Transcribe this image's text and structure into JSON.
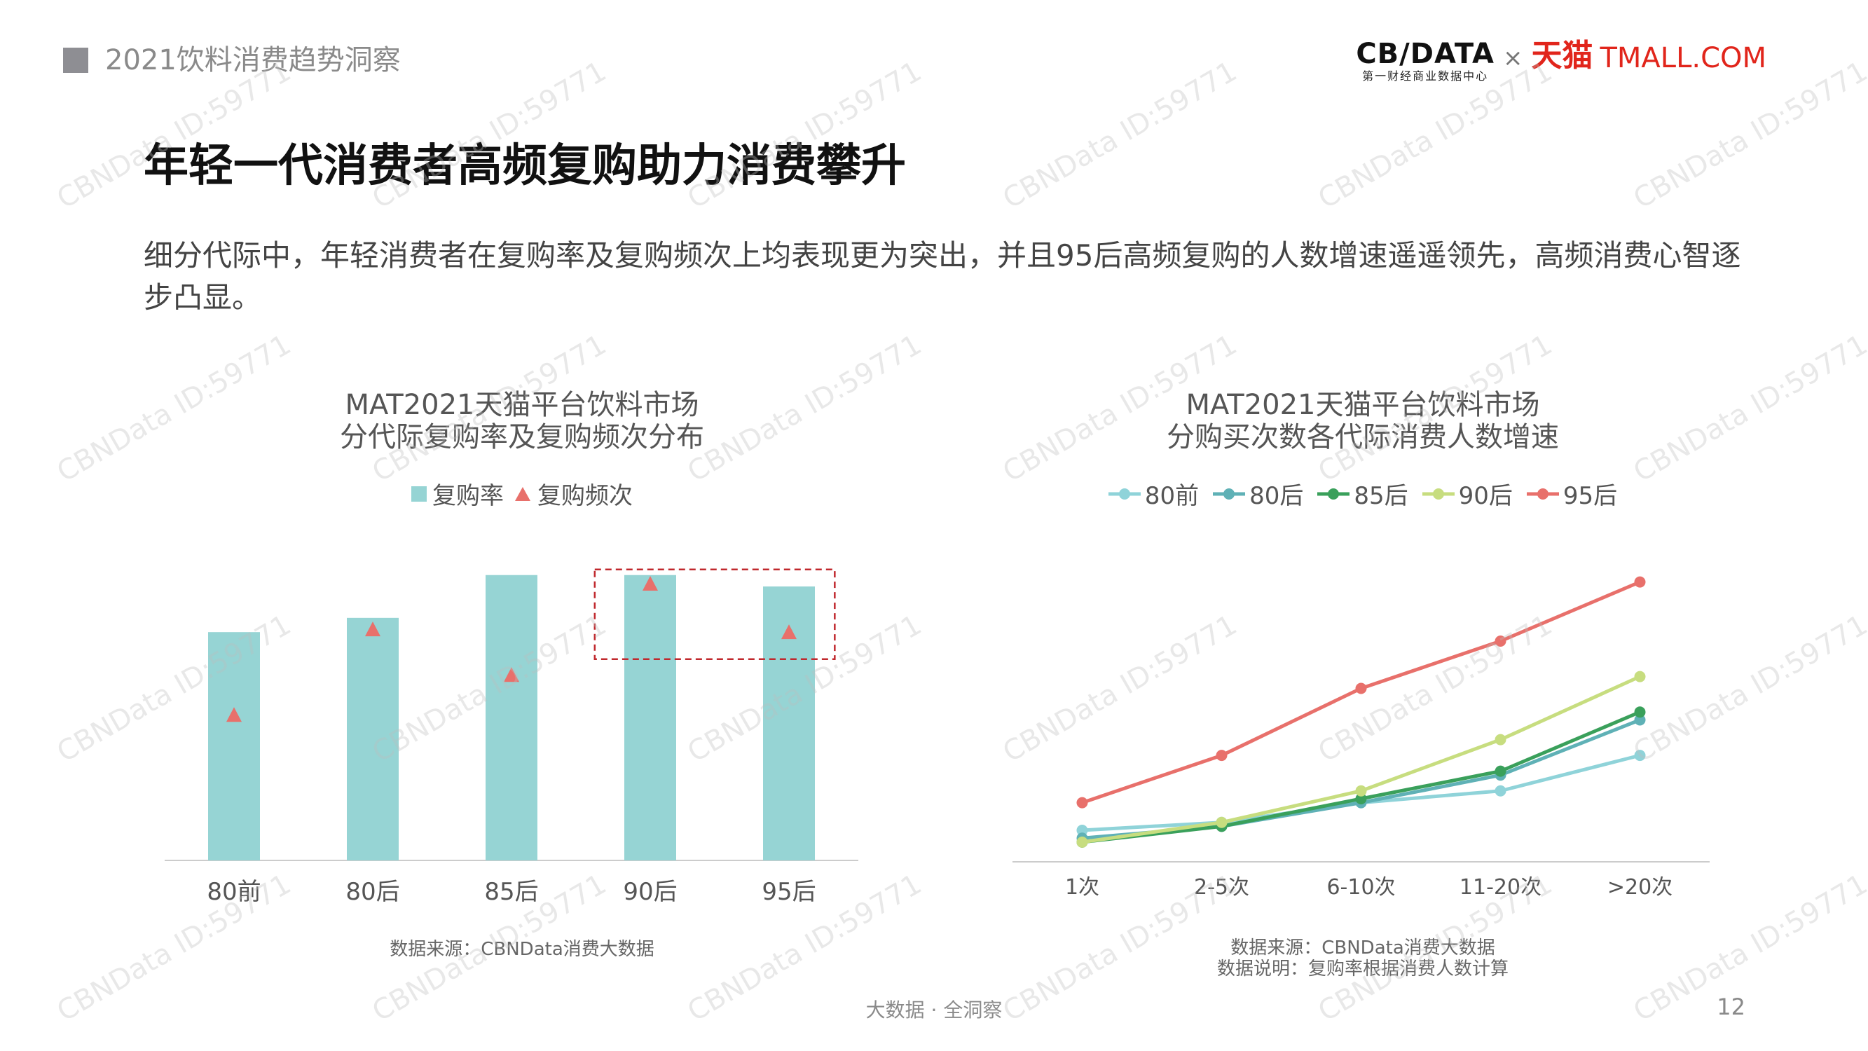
{
  "header": {
    "title": "2021饮料消费趋势洞察"
  },
  "logo": {
    "cbndata": "CB∕DATA",
    "cbndata_sub": "第一财经商业数据中心",
    "times": "×",
    "tmall_cn": "天猫",
    "tmall_en": "TMALL.COM"
  },
  "main_title": "年轻一代消费者高频复购助力消费攀升",
  "subtitle": "细分代际中，年轻消费者在复购率及复购频次上均表现更为突出，并且95后高频复购的人数增速遥遥领先，高频消费心智逐步凸显。",
  "footer": {
    "center": "大数据 · 全洞察",
    "page": "12"
  },
  "watermark": "CBNData ID:59771",
  "colors": {
    "bar": "#96d4d4",
    "triangle": "#e8706b",
    "highlight": "#c0282d",
    "axis": "#cccccc"
  },
  "chart_data": [
    {
      "type": "bar",
      "title": "MAT2021天猫平台饮料市场",
      "subtitle": "分代际复购率及复购频次分布",
      "categories": [
        "80前",
        "80后",
        "85后",
        "90后",
        "95后"
      ],
      "series": [
        {
          "name": "复购率",
          "values": [
            0.8,
            0.85,
            1.0,
            1.0,
            0.96
          ],
          "color": "#96d4d4",
          "marker": "bar"
        },
        {
          "name": "复购频次",
          "values": [
            0.51,
            0.81,
            0.65,
            0.97,
            0.8
          ],
          "color": "#e8706b",
          "marker": "triangle"
        }
      ],
      "ylim": [
        0,
        1.1
      ],
      "highlight": [
        "90后",
        "95后"
      ],
      "grid": false,
      "legend": "top-center",
      "source": "数据来源：CBNData消费大数据"
    },
    {
      "type": "line",
      "title": "MAT2021天猫平台饮料市场",
      "subtitle": "分购买次数各代际消费人数增速",
      "categories": [
        "1次",
        "2-5次",
        "6-10次",
        "11-20次",
        ">20次"
      ],
      "series": [
        {
          "name": "80前",
          "values": [
            0.08,
            0.1,
            0.15,
            0.18,
            0.27
          ],
          "color": "#8fd3d9"
        },
        {
          "name": "80后",
          "values": [
            0.06,
            0.09,
            0.15,
            0.22,
            0.36
          ],
          "color": "#5fb1b6"
        },
        {
          "name": "85后",
          "values": [
            0.05,
            0.09,
            0.16,
            0.23,
            0.38
          ],
          "color": "#3aa05b"
        },
        {
          "name": "90后",
          "values": [
            0.05,
            0.1,
            0.18,
            0.31,
            0.47
          ],
          "color": "#c7dd7f"
        },
        {
          "name": "95后",
          "values": [
            0.15,
            0.27,
            0.44,
            0.56,
            0.71
          ],
          "color": "#e8706b"
        }
      ],
      "ylim": [
        0,
        0.8
      ],
      "grid": false,
      "legend": "top-center",
      "source": "数据来源：CBNData消费大数据",
      "note": "数据说明：复购率根据消费人数计算"
    }
  ]
}
